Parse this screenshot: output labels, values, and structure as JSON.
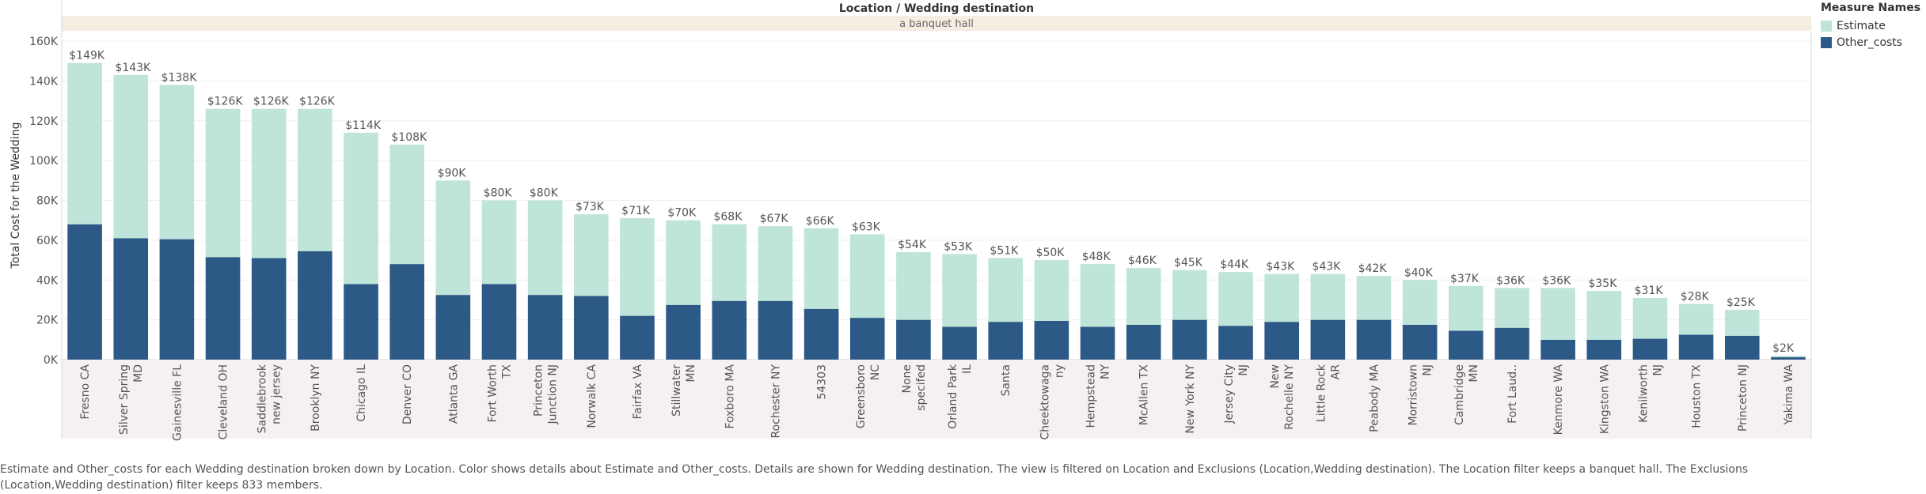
{
  "header": {
    "title": "Location  /  Wedding destination",
    "subtitle": "a banquet hall"
  },
  "legend": {
    "title": "Measure Names",
    "items": [
      {
        "label": "Estimate",
        "color": "#bfe4d9"
      },
      {
        "label": "Other_costs",
        "color": "#2d5986"
      }
    ]
  },
  "caption": {
    "line1": "Estimate and Other_costs for each Wedding destination broken down by Location.  Color shows details about Estimate and Other_costs.  Details are shown for Wedding destination. The view is filtered on Location and Exclusions (Location,Wedding destination). The Location filter keeps a banquet hall. The Exclusions",
    "line2": "(Location,Wedding destination) filter keeps 833 members."
  },
  "chart_data": {
    "type": "bar",
    "stacked": true,
    "ylabel": "Total Cost for the Wedding",
    "ylim": [
      0,
      160000
    ],
    "yticks": [
      0,
      20000,
      40000,
      60000,
      80000,
      100000,
      120000,
      140000,
      160000
    ],
    "ytick_labels": [
      "0K",
      "20K",
      "40K",
      "60K",
      "80K",
      "100K",
      "120K",
      "140K",
      "160K"
    ],
    "categories": [
      [
        "Fresno CA"
      ],
      [
        "Silver Spring",
        "MD"
      ],
      [
        "Gainesville FL"
      ],
      [
        "Cleveland OH"
      ],
      [
        "Saddlebrook",
        "new jersey"
      ],
      [
        "Brooklyn NY"
      ],
      [
        "Chicago IL"
      ],
      [
        "Denver CO"
      ],
      [
        "Atlanta GA"
      ],
      [
        "Fort Worth",
        "TX"
      ],
      [
        "Princeton",
        "Junction NJ"
      ],
      [
        "Norwalk CA"
      ],
      [
        "Fairfax VA"
      ],
      [
        "Stillwater",
        "MN"
      ],
      [
        "Foxboro MA"
      ],
      [
        "Rochester NY"
      ],
      [
        "54303"
      ],
      [
        "Greensboro",
        "NC"
      ],
      [
        "None",
        "specifed"
      ],
      [
        "Orland Park",
        "IL"
      ],
      [
        "Santa"
      ],
      [
        "Cheektowaga",
        "ny"
      ],
      [
        "Hempstead",
        "NY"
      ],
      [
        "McAllen TX"
      ],
      [
        "New York NY"
      ],
      [
        "Jersey City",
        "NJ"
      ],
      [
        "New",
        "Rochelle NY"
      ],
      [
        "Little Rock",
        "AR"
      ],
      [
        "Peabody MA"
      ],
      [
        "Morristown",
        "NJ"
      ],
      [
        "Cambridge",
        "MN"
      ],
      [
        "Fort Laud.."
      ],
      [
        "Kenmore WA"
      ],
      [
        "Kingston WA"
      ],
      [
        "Kenilworth",
        "NJ"
      ],
      [
        "Houston TX"
      ],
      [
        "Princeton NJ"
      ],
      [
        "Yakima WA"
      ]
    ],
    "total_labels": [
      "$149K",
      "$143K",
      "$138K",
      "$126K",
      "$126K",
      "$126K",
      "$114K",
      "$108K",
      "$90K",
      "$80K",
      "$80K",
      "$73K",
      "$71K",
      "$70K",
      "$68K",
      "$67K",
      "$66K",
      "$63K",
      "$54K",
      "$53K",
      "$51K",
      "$50K",
      "$48K",
      "$46K",
      "$45K",
      "$44K",
      "$43K",
      "$43K",
      "$42K",
      "$40K",
      "$37K",
      "$36K",
      "$36K",
      "$35K",
      "$31K",
      "$28K",
      "$25K",
      "$2K"
    ],
    "series": [
      {
        "name": "Other_costs",
        "color": "#2d5986",
        "values": [
          68000,
          61000,
          60500,
          51500,
          51000,
          54500,
          38000,
          48000,
          32500,
          38000,
          32500,
          32000,
          22000,
          27500,
          29500,
          29500,
          25500,
          21000,
          20000,
          16500,
          19000,
          19500,
          16500,
          17500,
          20000,
          17000,
          19000,
          20000,
          20000,
          17500,
          14500,
          16000,
          10000,
          10000,
          10500,
          12500,
          12000,
          1200
        ]
      },
      {
        "name": "Estimate",
        "color": "#bfe4d9",
        "values": [
          81000,
          82000,
          77500,
          74500,
          75000,
          71500,
          76000,
          60000,
          57500,
          42000,
          47500,
          41000,
          49000,
          42500,
          38500,
          37500,
          40500,
          42000,
          34000,
          36500,
          32000,
          30500,
          31500,
          28500,
          25000,
          27000,
          24000,
          23000,
          22000,
          22500,
          22500,
          20000,
          26000,
          24500,
          20500,
          15500,
          13000,
          800
        ]
      }
    ]
  }
}
